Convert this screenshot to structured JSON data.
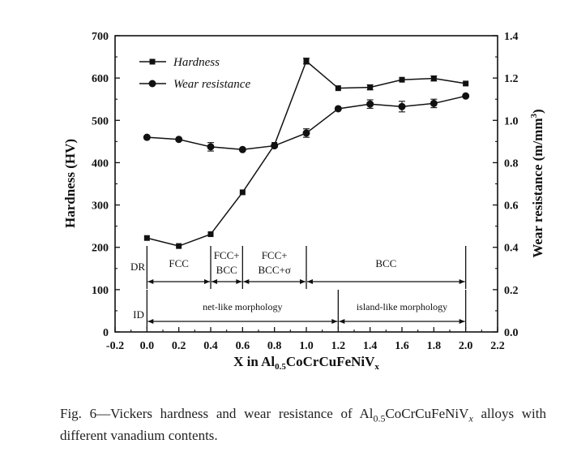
{
  "chart_data": {
    "type": "line",
    "xlabel": {
      "pre": "X in Al",
      "sub": "0.5",
      "post": "CoCrCuFeNiV",
      "sub2": "x"
    },
    "ylabel_left": "Hardness (HV)",
    "ylabel_right": {
      "pre": "Wear resistance (m/mm",
      "sup": "3",
      "post": ")"
    },
    "xlim": [
      -0.2,
      2.2
    ],
    "ylim_left": [
      0,
      700
    ],
    "ylim_right": [
      0.0,
      1.4
    ],
    "x_ticks": [
      "-0.2",
      "0.0",
      "0.2",
      "0.4",
      "0.6",
      "0.8",
      "1.0",
      "1.2",
      "1.4",
      "1.6",
      "1.8",
      "2.0",
      "2.2"
    ],
    "y_left_ticks": [
      "0",
      "100",
      "200",
      "300",
      "400",
      "500",
      "600",
      "700"
    ],
    "y_right_ticks": [
      "0.0",
      "0.2",
      "0.4",
      "0.6",
      "0.8",
      "1.0",
      "1.2",
      "1.4"
    ],
    "x": [
      0.0,
      0.2,
      0.4,
      0.6,
      0.8,
      1.0,
      1.2,
      1.4,
      1.6,
      1.8,
      2.0
    ],
    "legend_position": "top-left",
    "series": [
      {
        "name": "Hardness",
        "axis": "left",
        "marker": "square",
        "values": [
          222,
          203,
          231,
          330,
          442,
          640,
          576,
          578,
          596,
          599,
          587
        ],
        "errors": [
          0,
          0,
          0,
          0,
          0,
          7,
          0,
          6,
          0,
          6,
          0
        ]
      },
      {
        "name": "Wear resistance",
        "axis": "right",
        "marker": "circle",
        "values": [
          0.92,
          0.91,
          0.875,
          0.862,
          0.88,
          0.94,
          1.055,
          1.077,
          1.065,
          1.08,
          1.115
        ],
        "errors": [
          0,
          0,
          0.02,
          0,
          0,
          0.02,
          0,
          0.02,
          0.025,
          0.02,
          0
        ]
      }
    ],
    "annotations": {
      "row_dr": {
        "label": "DR",
        "x_range": [
          0.0,
          2.0
        ],
        "dividers": [
          0.4,
          0.6,
          1.0
        ],
        "regions": [
          {
            "x": 0.2,
            "lines": [
              "FCC"
            ]
          },
          {
            "x": 0.5,
            "lines": [
              "FCC+",
              "BCC"
            ]
          },
          {
            "x": 0.8,
            "lines": [
              "FCC+",
              "BCC+σ"
            ]
          },
          {
            "x": 1.5,
            "lines": [
              "BCC"
            ]
          }
        ]
      },
      "row_id": {
        "label": "ID",
        "x_range": [
          0.0,
          2.0
        ],
        "dividers": [
          1.2
        ],
        "regions": [
          {
            "x": 0.6,
            "lines": [
              "net-like morphology"
            ]
          },
          {
            "x": 1.6,
            "lines": [
              "island-like morphology"
            ]
          }
        ]
      }
    }
  },
  "caption": {
    "prefix": "Fig. 6—Vickers hardness and wear resistance of Al",
    "sub": "0.5",
    "mid": "CoCrCuFeNiV",
    "var": "x",
    "suffix": " alloys with different vanadium contents."
  }
}
